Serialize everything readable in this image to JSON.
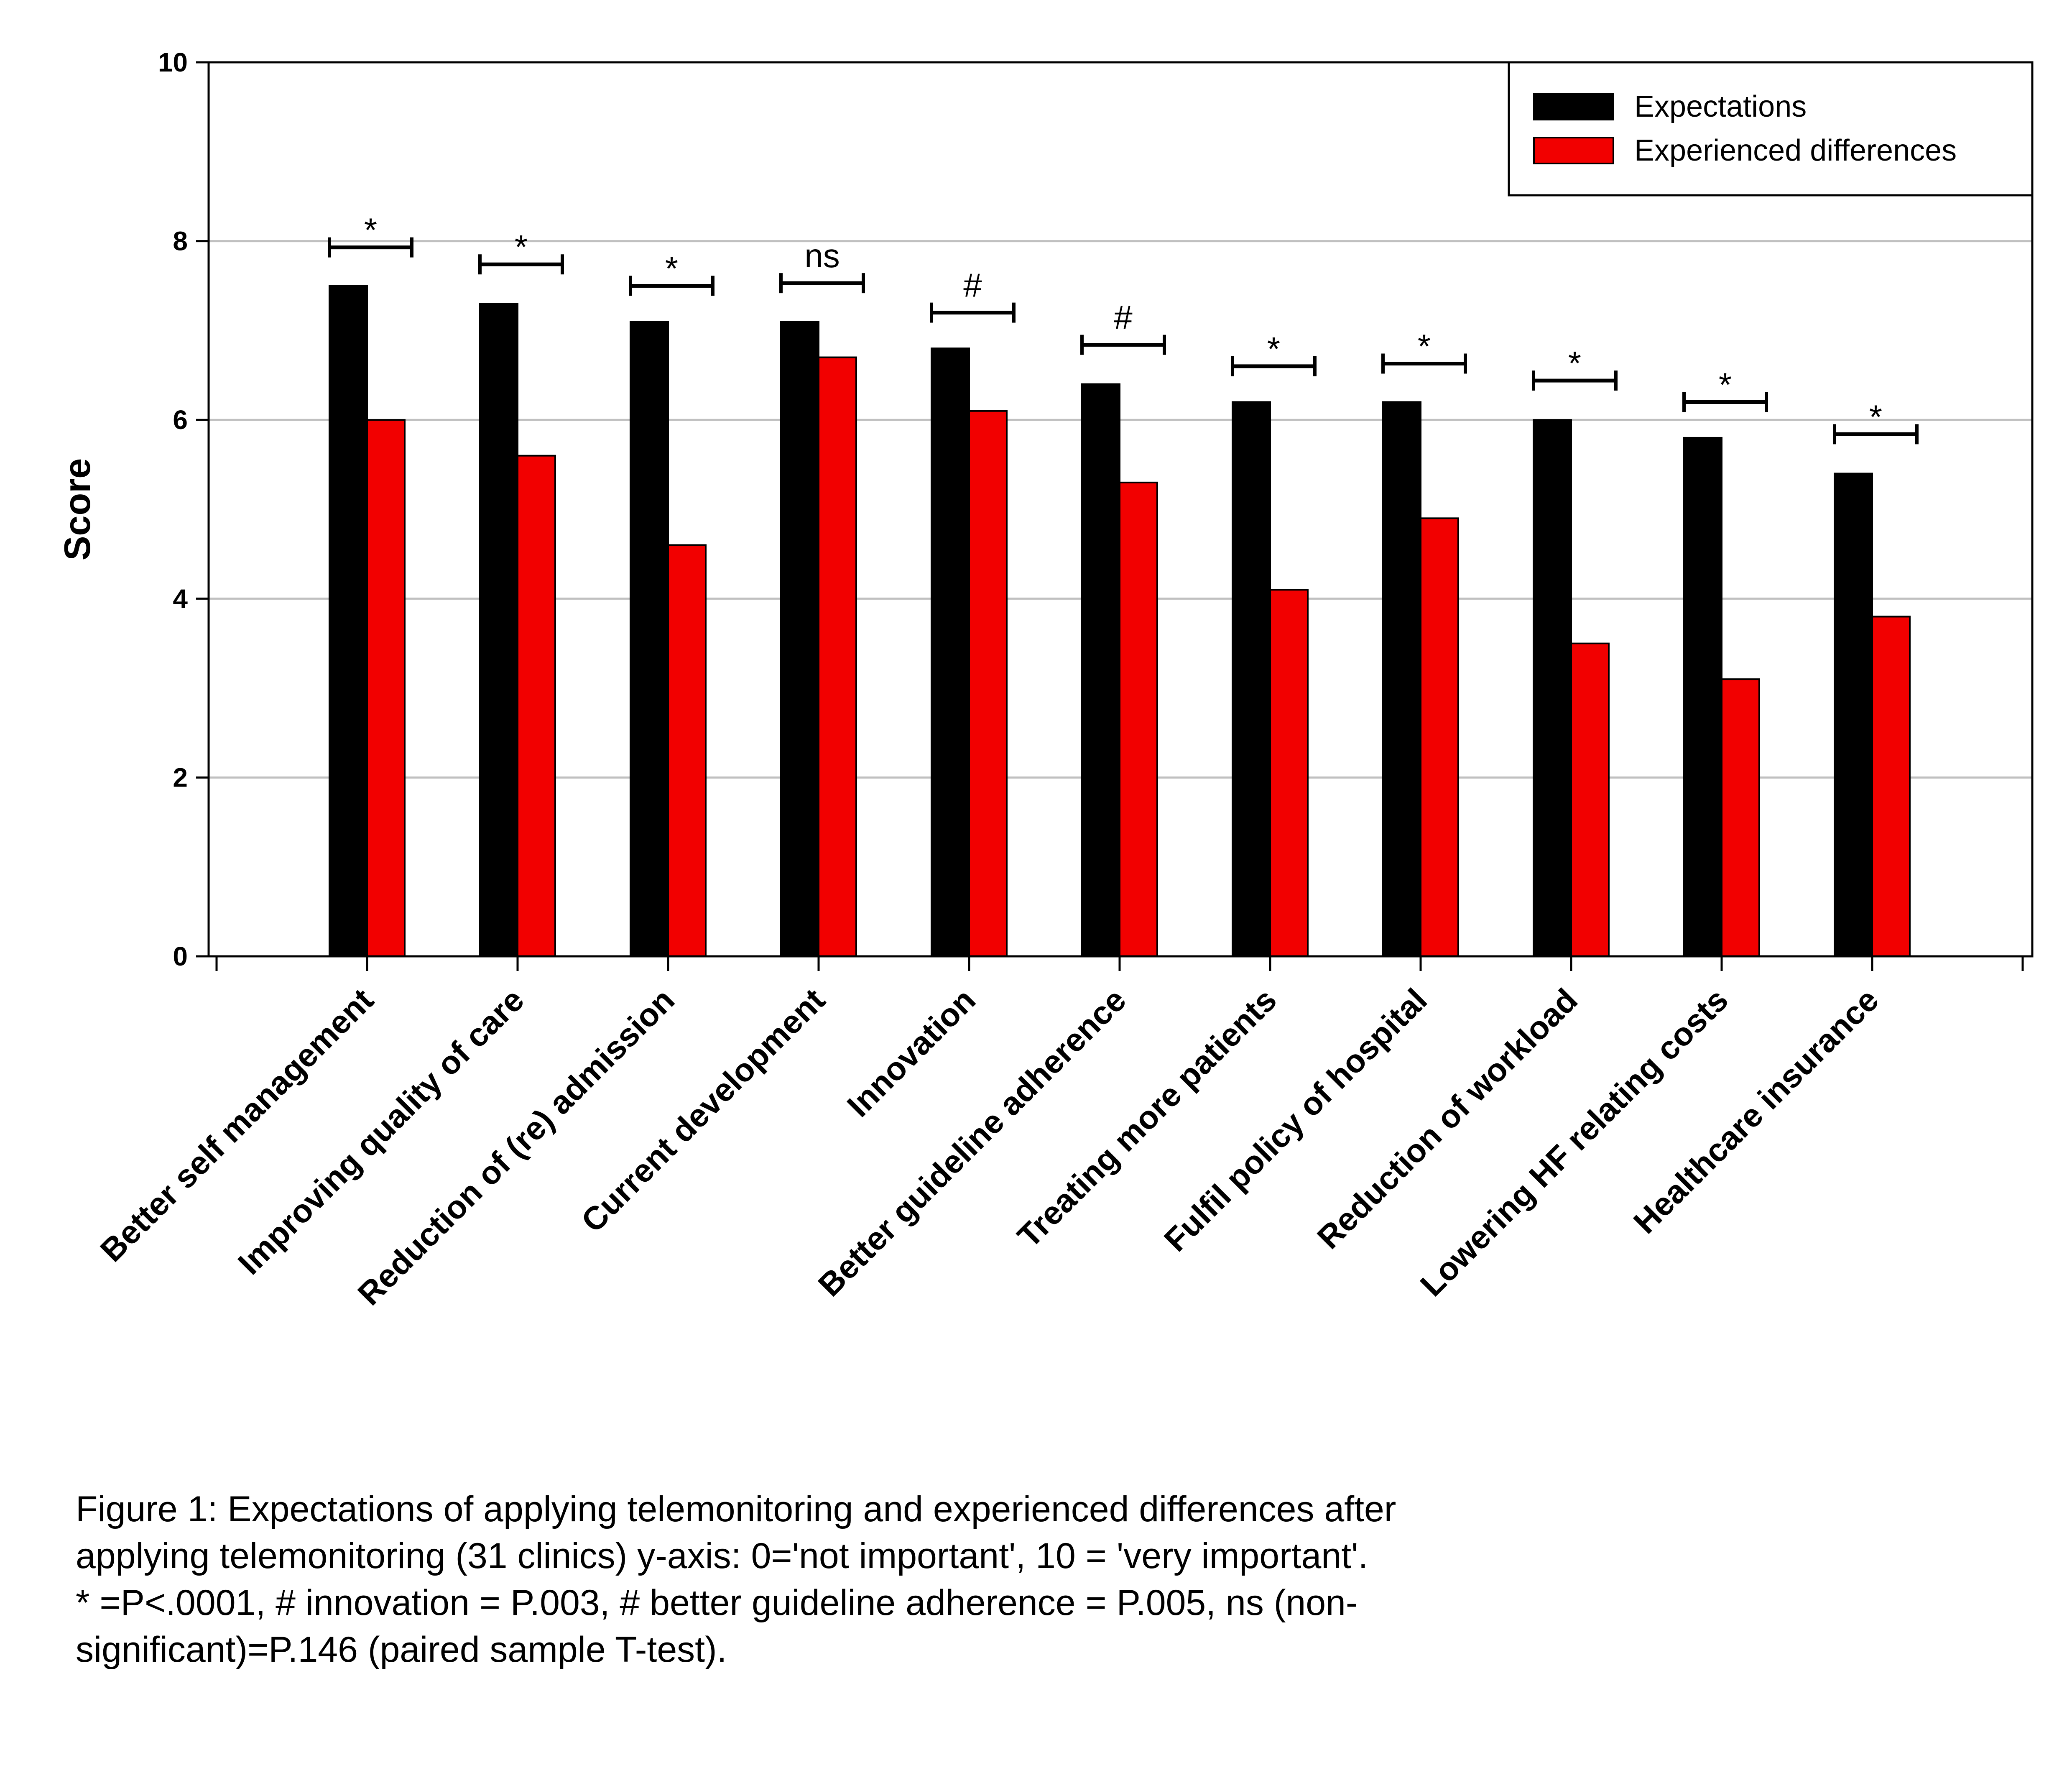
{
  "chart_data": {
    "type": "bar",
    "title": "",
    "xlabel": "",
    "ylabel": "Score",
    "ylim": [
      0,
      10
    ],
    "yticks": [
      0,
      2,
      4,
      6,
      8,
      10
    ],
    "grid": "horizontal",
    "legend_position": "top-right",
    "categories": [
      "Better self management",
      "Improving quality of care",
      "Reduction of (re) admission",
      "Current development",
      "Innovation",
      "Better guideline adherence",
      "Treating more patients",
      "Fulfil policy of hospital",
      "Reduction of workload",
      "Lowering HF relating costs",
      "Healthcare insurance"
    ],
    "series": [
      {
        "name": "Expectations",
        "color": "#000000",
        "values": [
          7.5,
          7.3,
          7.1,
          7.1,
          6.8,
          6.4,
          6.2,
          6.2,
          6.0,
          5.8,
          5.4
        ]
      },
      {
        "name": "Experienced differences",
        "color": "#f20000",
        "values": [
          6.0,
          5.6,
          4.6,
          6.7,
          6.1,
          5.3,
          4.1,
          4.9,
          3.5,
          3.1,
          3.8
        ]
      }
    ],
    "significance": [
      {
        "label": "*",
        "y": 7.93
      },
      {
        "label": "*",
        "y": 7.74
      },
      {
        "label": "*",
        "y": 7.5
      },
      {
        "label": "ns",
        "y": 7.53
      },
      {
        "label": "#",
        "y": 7.2
      },
      {
        "label": "#",
        "y": 6.84
      },
      {
        "label": "*",
        "y": 6.6
      },
      {
        "label": "*",
        "y": 6.63
      },
      {
        "label": "*",
        "y": 6.44
      },
      {
        "label": "*",
        "y": 6.2
      },
      {
        "label": "*",
        "y": 5.84
      }
    ]
  },
  "caption": [
    "Figure 1: Expectations of applying telemonitoring and experienced differences after",
    "applying telemonitoring (31 clinics) y-axis: 0='not important', 10 = 'very important'.",
    "* =P<.0001, # innovation = P.003, # better guideline adherence  = P.005, ns (non-",
    "significant)=P.146 (paired sample T-test)."
  ]
}
